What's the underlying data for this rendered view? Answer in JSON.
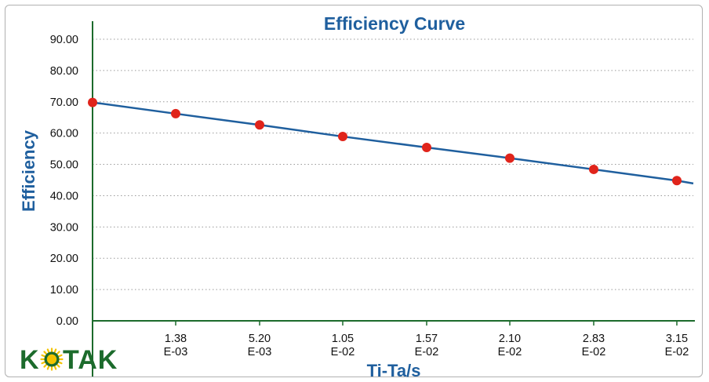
{
  "chart_data": {
    "type": "line",
    "title": "Efficiency Curve",
    "xlabel": "Ti-Ta/s",
    "ylabel": "Efficiency",
    "ylim": [
      0,
      90
    ],
    "yticks": [
      "0.00",
      "10.00",
      "20.00",
      "30.00",
      "40.00",
      "50.00",
      "60.00",
      "70.00",
      "80.00",
      "90.00"
    ],
    "x_tick_labels": [
      {
        "line1": "1.38",
        "line2": "E-03"
      },
      {
        "line1": "5.20",
        "line2": "E-03"
      },
      {
        "line1": "1.05",
        "line2": "E-02"
      },
      {
        "line1": "1.57",
        "line2": "E-02"
      },
      {
        "line1": "2.10",
        "line2": "E-02"
      },
      {
        "line1": "2.83",
        "line2": "E-02"
      },
      {
        "line1": "3.15",
        "line2": "E-02"
      }
    ],
    "series": [
      {
        "points": [
          {
            "x": 0,
            "y": 69.8
          },
          {
            "x": 0.00138,
            "y": 66.2
          },
          {
            "x": 0.0052,
            "y": 62.6
          },
          {
            "x": 0.0105,
            "y": 58.9
          },
          {
            "x": 0.0157,
            "y": 55.4
          },
          {
            "x": 0.021,
            "y": 52.0
          },
          {
            "x": 0.0283,
            "y": 48.4
          },
          {
            "x": 0.0315,
            "y": 44.8
          }
        ],
        "trend_end": {
          "y": 43.9
        },
        "line_color": "#1f5f9e",
        "marker_color": "#e0241b"
      }
    ],
    "grid": "horizontal-dotted",
    "legend": "none"
  },
  "logo": {
    "letters_before": "K",
    "letters_after": "TAK",
    "colors": {
      "text": "#1c6b2c",
      "sun": "#f3c300"
    }
  },
  "colors": {
    "axis": "#1c6b2c",
    "grid": "#9a9a9a",
    "accent": "#1f5f9e"
  }
}
